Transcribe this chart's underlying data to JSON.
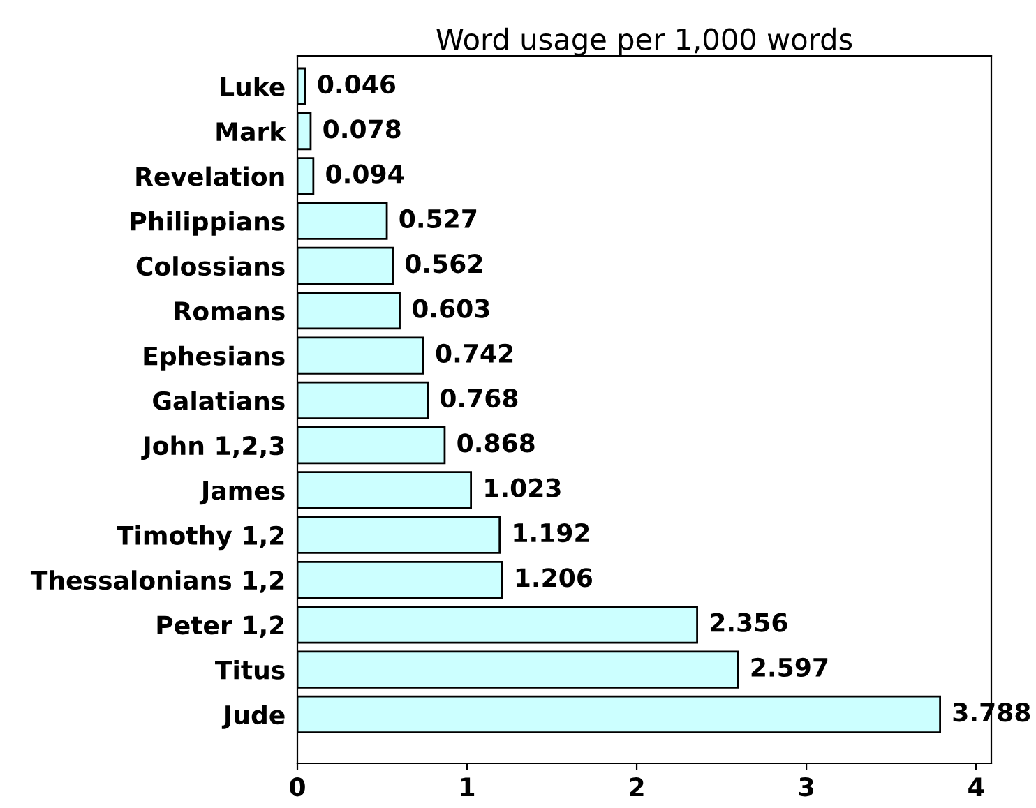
{
  "chart_data": {
    "type": "bar",
    "orientation": "horizontal",
    "title": "Word usage per 1,000 words",
    "categories": [
      "Luke",
      "Mark",
      "Revelation",
      "Philippians",
      "Colossians",
      "Romans",
      "Ephesians",
      "Galatians",
      "John 1,2,3",
      "James",
      "Timothy 1,2",
      "Thessalonians 1,2",
      "Peter 1,2",
      "Titus",
      "Jude"
    ],
    "values": [
      0.046,
      0.078,
      0.094,
      0.527,
      0.562,
      0.603,
      0.742,
      0.768,
      0.868,
      1.023,
      1.192,
      1.206,
      2.356,
      2.597,
      3.788
    ],
    "value_labels": [
      "0.046",
      "0.078",
      "0.094",
      "0.527",
      "0.562",
      "0.603",
      "0.742",
      "0.768",
      "0.868",
      "1.023",
      "1.192",
      "1.206",
      "2.356",
      "2.597",
      "3.788"
    ],
    "color": "#ccffff",
    "xlim": [
      0,
      4.09
    ],
    "xticks": [
      0,
      1,
      2,
      3,
      4
    ],
    "grid": false,
    "legend": false
  }
}
